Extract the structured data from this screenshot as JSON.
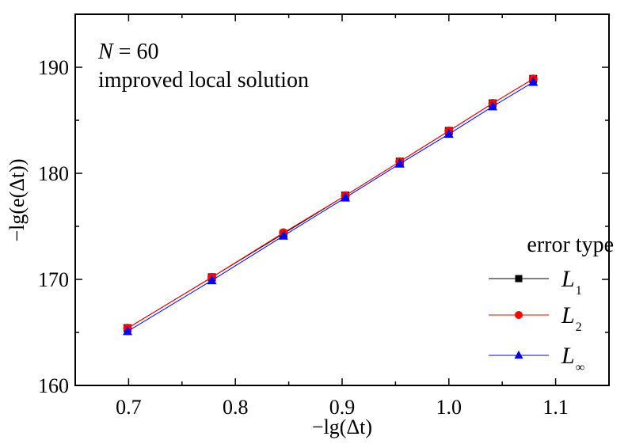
{
  "chart_data": {
    "type": "line",
    "title": "",
    "xlabel": "−lg(Δt)",
    "ylabel": "−lg(e(Δt))",
    "xlim": [
      0.65,
      1.15
    ],
    "ylim": [
      160,
      195
    ],
    "xticks": [
      0.7,
      0.8,
      0.9,
      1.0,
      1.1
    ],
    "xtick_labels": [
      "0.7",
      "0.8",
      "0.9",
      "1.0",
      "1.1"
    ],
    "xminor": [
      0.75,
      0.85,
      0.95,
      1.05
    ],
    "yticks": [
      160,
      170,
      180,
      190
    ],
    "ytick_labels": [
      "160",
      "170",
      "180",
      "190"
    ],
    "yminor": [
      165,
      175,
      185
    ],
    "grid": false,
    "x": [
      0.699,
      0.778,
      0.845,
      0.903,
      0.954,
      1.0,
      1.041,
      1.079
    ],
    "series": [
      {
        "name": "L1",
        "label_main": "L",
        "label_sub": "1",
        "color": "#000000",
        "marker": "square",
        "values": [
          165.4,
          170.2,
          174.3,
          177.9,
          181.1,
          184.0,
          186.6,
          188.9
        ]
      },
      {
        "name": "L2",
        "label_main": "L",
        "label_sub": "2",
        "color": "#ff0000",
        "marker": "circle",
        "values": [
          165.4,
          170.2,
          174.4,
          177.9,
          181.1,
          184.0,
          186.6,
          188.9
        ]
      },
      {
        "name": "L∞",
        "label_main": "L",
        "label_sub": "∞",
        "color": "#0000ff",
        "marker": "triangle",
        "values": [
          165.1,
          169.9,
          174.1,
          177.7,
          180.9,
          183.7,
          186.3,
          188.6
        ]
      }
    ],
    "annotations": [
      {
        "text_italic": "N",
        "text": " = 60"
      },
      {
        "text": "improved local solution"
      }
    ],
    "legend": {
      "title": "error type",
      "position": "lower right"
    }
  }
}
